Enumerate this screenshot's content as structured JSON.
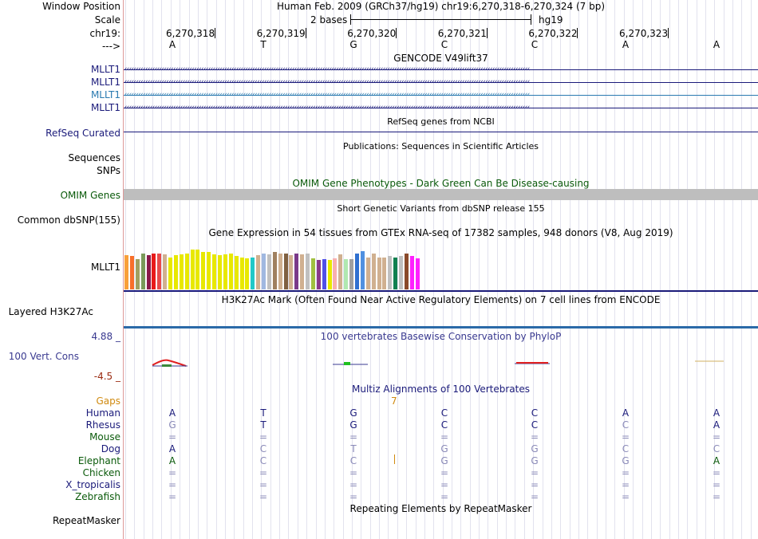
{
  "header": {
    "window_position_label": "Window Position",
    "scale_label": "Scale",
    "chrom_label": "chr19:",
    "strand_label": "--->",
    "assembly": "Human Feb. 2009 (GRCh37/hg19)   chr19:6,270,318-6,270,324 (7 bp)",
    "scale_text": "2 bases",
    "scale_db": "hg19",
    "positions": [
      "6,270,318",
      "6,270,319",
      "6,270,320",
      "6,270,321",
      "6,270,322",
      "6,270,323"
    ],
    "reference_bases": [
      "A",
      "T",
      "G",
      "C",
      "C",
      "A",
      "A"
    ]
  },
  "tracks": {
    "gencode": {
      "title": "GENCODE V49lift37",
      "items": [
        {
          "label": "MLLT1",
          "color": "#1a1a7a"
        },
        {
          "label": "MLLT1",
          "color": "#1a1a7a"
        },
        {
          "label": "MLLT1",
          "color": "#2a7ab0"
        },
        {
          "label": "MLLT1",
          "color": "#1a1a7a"
        }
      ],
      "arrows": "‹‹‹‹‹‹‹‹‹‹‹‹‹‹‹‹‹‹‹‹‹‹‹‹‹‹‹‹‹‹‹‹‹‹‹‹‹‹‹‹‹‹‹‹‹‹‹‹‹‹‹‹‹‹‹‹‹‹‹‹‹‹‹‹‹‹‹‹‹‹‹‹‹‹‹‹‹‹‹‹‹‹‹‹‹‹‹‹‹‹‹‹‹‹‹‹‹‹‹‹‹‹‹‹‹‹‹‹‹‹‹‹‹‹‹‹‹‹‹‹‹‹‹‹‹‹‹‹‹‹‹‹‹‹‹‹‹‹‹‹‹‹‹‹‹‹‹‹‹‹‹‹‹‹‹‹‹‹‹‹‹‹‹‹‹‹‹‹‹‹‹‹‹‹"
    },
    "refseq": {
      "label": "RefSeq Curated",
      "title": "RefSeq genes from NCBI",
      "color": "#1a1a7a"
    },
    "publications": {
      "title": "Publications: Sequences in Scientific Articles",
      "label1": "Sequences",
      "label2": "SNPs"
    },
    "omim": {
      "label": "OMIM Genes",
      "title": "OMIM Gene Phenotypes - Dark Green Can Be Disease-causing",
      "color": "#0a5a0a",
      "bar_color": "#bebebe"
    },
    "dbsnp": {
      "label": "Common dbSNP(155)",
      "title": "Short Genetic Variants from dbSNP release 155"
    },
    "gtex": {
      "label": "MLLT1",
      "title": "Gene Expression in 54 tissues from GTEx RNA-seq of 17382 samples, 948 donors (V8, Aug 2019)",
      "values": [
        0.68,
        0.66,
        0.6,
        0.72,
        0.68,
        0.72,
        0.72,
        0.7,
        0.64,
        0.68,
        0.7,
        0.72,
        0.8,
        0.8,
        0.75,
        0.75,
        0.7,
        0.68,
        0.7,
        0.72,
        0.66,
        0.64,
        0.62,
        0.64,
        0.68,
        0.72,
        0.7,
        0.74,
        0.72,
        0.72,
        0.68,
        0.72,
        0.7,
        0.72,
        0.62,
        0.58,
        0.6,
        0.58,
        0.62,
        0.7,
        0.6,
        0.6,
        0.72,
        0.76,
        0.64,
        0.72,
        0.64,
        0.64,
        0.66,
        0.64,
        0.66,
        0.72,
        0.66,
        0.62
      ],
      "colors": [
        "#f8a03a",
        "#f86f2a",
        "#a0a060",
        "#7a9a5a",
        "#8a1a4a",
        "#e81a1a",
        "#e84a4a",
        "#d0b090",
        "#e8e800",
        "#e8e800",
        "#e8e800",
        "#e8e800",
        "#e8e800",
        "#e8e800",
        "#e8e800",
        "#e8e800",
        "#e8e800",
        "#e8e800",
        "#e8e800",
        "#e8e800",
        "#e8e800",
        "#e8e800",
        "#e8e800",
        "#20c8c8",
        "#d0b090",
        "#a0b8e0",
        "#c0c0c0",
        "#a08060",
        "#d0b090",
        "#806040",
        "#d0b090",
        "#7a3a8a",
        "#d0b090",
        "#c0c0c0",
        "#a0c040",
        "#8a3a8a",
        "#5050e8",
        "#e8e800",
        "#f8b0b0",
        "#d0b090",
        "#b0e8b0",
        "#a0a0a0",
        "#3070d0",
        "#5090e0",
        "#d0b090",
        "#d0b090",
        "#d0b090",
        "#d0b090",
        "#c0c0c0",
        "#108050",
        "#c0c0c0",
        "#8a4a2a",
        "#ff20ff",
        "#ff20ff"
      ]
    },
    "h3k27ac": {
      "label": "Layered H3K27Ac",
      "title": "H3K27Ac Mark (Often Found Near Active Regulatory Elements) on 7 cell lines from ENCODE",
      "color": "#2a6aa8"
    },
    "phylop": {
      "label": "100 Vert. Cons",
      "title": "100 vertebrates Basewise Conservation by PhyloP",
      "max": "4.88 _",
      "min": "-4.5 _",
      "label_color": "#3a3a90",
      "min_color": "#9a2a10"
    },
    "multiz": {
      "title": "Multiz Alignments of 100 Vertebrates",
      "gaps_label": "Gaps",
      "gap_value": "7",
      "gaps_color": "#d08a10",
      "species": [
        {
          "name": "Human",
          "color": "#1a1a7a",
          "bases": [
            "A",
            "T",
            "G",
            "C",
            "C",
            "A",
            "A"
          ],
          "dim": [
            false,
            false,
            false,
            false,
            false,
            false,
            false
          ]
        },
        {
          "name": "Rhesus",
          "color": "#1a1a7a",
          "bases": [
            "G",
            "T",
            "G",
            "C",
            "C",
            "C",
            "A"
          ],
          "dim": [
            true,
            false,
            false,
            false,
            false,
            true,
            false
          ]
        },
        {
          "name": "Mouse",
          "color": "#0a5a0a",
          "bases": [
            "=",
            "=",
            "=",
            "=",
            "=",
            "=",
            "="
          ],
          "dim": [
            true,
            true,
            true,
            true,
            true,
            true,
            true
          ]
        },
        {
          "name": "Dog",
          "color": "#1a1a7a",
          "bases": [
            "A",
            "C",
            "T",
            "G",
            "G",
            "C",
            "C"
          ],
          "dim": [
            false,
            true,
            true,
            true,
            true,
            true,
            true
          ]
        },
        {
          "name": "Elephant",
          "color": "#0a5a0a",
          "bases": [
            "A",
            "C",
            "C",
            "G",
            "G",
            "G",
            "A"
          ],
          "dim": [
            false,
            true,
            true,
            true,
            true,
            true,
            false
          ]
        },
        {
          "name": "Chicken",
          "color": "#0a5a0a",
          "bases": [
            "=",
            "=",
            "=",
            "=",
            "=",
            "=",
            "="
          ],
          "dim": [
            true,
            true,
            true,
            true,
            true,
            true,
            true
          ]
        },
        {
          "name": "X_tropicalis",
          "color": "#1a1a7a",
          "bases": [
            "=",
            "=",
            "=",
            "=",
            "=",
            "=",
            "="
          ],
          "dim": [
            true,
            true,
            true,
            true,
            true,
            true,
            true
          ]
        },
        {
          "name": "Zebrafish",
          "color": "#0a5a0a",
          "bases": [
            "=",
            "=",
            "=",
            "=",
            "=",
            "=",
            "="
          ],
          "dim": [
            true,
            true,
            true,
            true,
            true,
            true,
            true
          ]
        }
      ]
    },
    "repeatmasker": {
      "label": "RepeatMasker",
      "title": "Repeating Elements by RepeatMasker"
    }
  }
}
